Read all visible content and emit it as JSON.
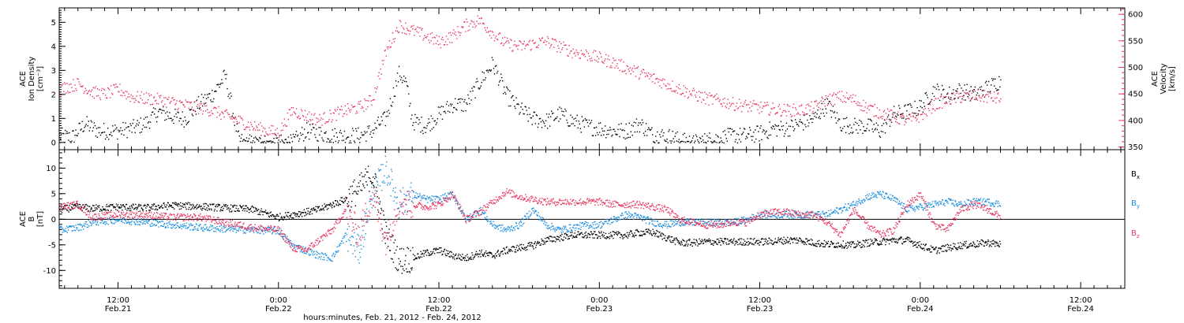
{
  "colors": {
    "black": "#000000",
    "pink": "#e8355f",
    "blue": "#1a8fe0"
  },
  "x_axis": {
    "title": "hours:minutes, Feb. 21, 2012 - Feb. 24, 2012",
    "ticks": [
      {
        "t": 12,
        "time": "12:00",
        "date": "Feb.21"
      },
      {
        "t": 24,
        "time": "0:00",
        "date": "Feb.22"
      },
      {
        "t": 36,
        "time": "12:00",
        "date": "Feb.22"
      },
      {
        "t": 48,
        "time": "0:00",
        "date": "Feb.23"
      },
      {
        "t": 60,
        "time": "12:00",
        "date": "Feb.23"
      },
      {
        "t": 72,
        "time": "0:00",
        "date": "Feb.24"
      },
      {
        "t": 84,
        "time": "12:00",
        "date": "Feb.24"
      }
    ]
  },
  "chart_data": [
    {
      "type": "scatter",
      "panel": "top",
      "xlabel": "hours:minutes, Feb. 21, 2012 - Feb. 24, 2012",
      "xlim_hours": [
        7.6,
        87.3
      ],
      "y_left": {
        "label": [
          "ACE",
          "Ion Density",
          "[cm⁻³]"
        ],
        "ylim": [
          -0.3,
          5.6
        ],
        "ticks": [
          0,
          1,
          2,
          3,
          4,
          5
        ]
      },
      "y_right": {
        "label": [
          "ACE",
          "Velocity",
          "[km/s]"
        ],
        "ylim": [
          345,
          612
        ],
        "ticks": [
          350,
          400,
          450,
          500,
          550,
          600
        ]
      },
      "series": [
        {
          "color": "#000000",
          "axis": "left",
          "x": [
            7.6,
            8.5,
            9.5,
            10.5,
            12,
            13,
            14,
            15,
            16,
            17,
            18,
            19,
            20,
            21,
            22,
            22.5,
            23,
            24,
            25,
            26,
            27,
            28,
            29,
            30,
            31,
            31.5,
            32,
            33,
            33.5,
            34,
            35,
            36,
            37,
            38,
            39,
            40,
            41,
            42,
            43,
            44,
            45,
            46,
            47,
            48,
            49,
            50,
            51,
            52,
            53,
            54,
            55,
            56,
            57,
            58,
            59,
            60,
            61,
            62,
            63,
            64,
            65,
            66,
            67,
            68,
            69,
            70,
            71,
            72,
            73,
            74,
            75,
            76,
            77,
            78
          ],
          "y": [
            0.3,
            0.2,
            0.8,
            0.5,
            0.5,
            0.6,
            0.8,
            1.3,
            1.1,
            1.0,
            1.6,
            2.0,
            2.8,
            0.1,
            0.0,
            0.0,
            0.0,
            0.0,
            0.0,
            0.5,
            0.4,
            0.3,
            0.3,
            0.3,
            0.5,
            0.8,
            1.0,
            2.9,
            2.5,
            0.9,
            0.7,
            1.2,
            1.6,
            1.6,
            2.5,
            3.3,
            2.0,
            1.4,
            1.0,
            0.9,
            1.2,
            0.9,
            0.7,
            0.6,
            0.5,
            0.5,
            0.8,
            0.3,
            0.3,
            0.1,
            0.0,
            0.1,
            0.2,
            0.3,
            0.3,
            0.4,
            0.6,
            0.6,
            0.8,
            1.0,
            1.6,
            0.8,
            0.7,
            0.7,
            0.5,
            1.2,
            1.3,
            1.5,
            2.2,
            2.0,
            2.2,
            2.0,
            2.3,
            2.6
          ]
        },
        {
          "color": "#e8355f",
          "axis": "right",
          "x": [
            7.6,
            9,
            10,
            11,
            12,
            13,
            15,
            17,
            19,
            20,
            21,
            22,
            23,
            24,
            25,
            26,
            27,
            28,
            29,
            30,
            31,
            32,
            33,
            34,
            35,
            36,
            37,
            38,
            39,
            40,
            41,
            42,
            43,
            44,
            45,
            46,
            47,
            48,
            49,
            50,
            51,
            52,
            53,
            54,
            55,
            56,
            57,
            58,
            59,
            60,
            61,
            62,
            63,
            64,
            65,
            66,
            67,
            68,
            69,
            70,
            71,
            72,
            73,
            74,
            75,
            76,
            77,
            78
          ],
          "y": [
            460,
            470,
            455,
            450,
            460,
            445,
            440,
            430,
            420,
            410,
            400,
            390,
            382,
            378,
            420,
            410,
            402,
            410,
            420,
            425,
            440,
            530,
            580,
            570,
            560,
            548,
            560,
            580,
            590,
            565,
            545,
            540,
            545,
            550,
            540,
            530,
            525,
            518,
            510,
            500,
            490,
            480,
            470,
            460,
            450,
            442,
            438,
            432,
            428,
            425,
            422,
            420,
            420,
            425,
            440,
            445,
            440,
            425,
            415,
            408,
            400,
            410,
            430,
            440,
            445,
            448,
            445,
            442
          ]
        }
      ]
    },
    {
      "type": "line",
      "panel": "bottom",
      "xlabel": "hours:minutes, Feb. 21, 2012 - Feb. 24, 2012",
      "xlim_hours": [
        7.6,
        87.3
      ],
      "y": {
        "label": [
          "ACE",
          "B",
          "[nT]"
        ],
        "ylim": [
          -13.5,
          13.6
        ],
        "ticks": [
          -10,
          -5,
          0,
          5,
          10
        ]
      },
      "series": [
        {
          "name": "Bx",
          "color": "#000000",
          "x": [
            7.6,
            9,
            10,
            12,
            14,
            16,
            18,
            20,
            22,
            24,
            25,
            26,
            27,
            28,
            29,
            30,
            31,
            32,
            33,
            34,
            35,
            36,
            37,
            38,
            39,
            40,
            41,
            42,
            43,
            44,
            45,
            46,
            47,
            48,
            49,
            50,
            51,
            52,
            53,
            54,
            55,
            56,
            57,
            58,
            59,
            60,
            61,
            62,
            63,
            64,
            65,
            66,
            67,
            68,
            69,
            70,
            71,
            72,
            73,
            74,
            75,
            76,
            77,
            78
          ],
          "y": [
            2.0,
            2.5,
            2.2,
            2.5,
            2.3,
            2.8,
            2.6,
            2.3,
            2.0,
            0.5,
            1.0,
            1.5,
            2.0,
            3.0,
            4.0,
            6.0,
            9.0,
            -3.0,
            -8.0,
            -7.5,
            -6.5,
            -6.0,
            -7.0,
            -7.5,
            -6.5,
            -7.0,
            -6.0,
            -5.5,
            -5.0,
            -4.0,
            -3.5,
            -3.0,
            -3.0,
            -3.0,
            -3.0,
            -3.0,
            -2.5,
            -2.5,
            -3.5,
            -4.5,
            -4.5,
            -4.3,
            -4.3,
            -4.3,
            -4.3,
            -4.3,
            -4.2,
            -4.0,
            -4.0,
            -4.5,
            -4.8,
            -4.8,
            -5.0,
            -4.5,
            -4.3,
            -4.0,
            -4.0,
            -5.0,
            -6.0,
            -5.5,
            -5.0,
            -4.8,
            -4.5,
            -4.8
          ]
        },
        {
          "name": "By",
          "color": "#1a8fe0",
          "x": [
            7.6,
            9,
            10,
            12,
            14,
            16,
            18,
            20,
            22,
            24,
            25,
            26,
            27,
            28,
            29,
            30,
            31,
            32,
            33,
            34,
            35,
            36,
            37,
            38,
            39,
            40,
            41,
            42,
            43,
            44,
            45,
            46,
            47,
            48,
            49,
            50,
            51,
            52,
            53,
            54,
            55,
            56,
            57,
            58,
            59,
            60,
            61,
            62,
            63,
            64,
            65,
            66,
            67,
            68,
            69,
            70,
            71,
            72,
            73,
            74,
            75,
            76,
            77,
            78
          ],
          "y": [
            -2.0,
            -1.5,
            -0.5,
            0.0,
            -0.5,
            -1.0,
            -1.5,
            -1.8,
            -2.0,
            -2.2,
            -5.0,
            -6.0,
            -7.0,
            -7.5,
            -3.0,
            -6.0,
            5.0,
            10.0,
            3.0,
            5.0,
            4.0,
            4.0,
            5.0,
            0.0,
            2.0,
            -1.0,
            -2.0,
            -1.0,
            2.0,
            -1.0,
            -2.0,
            -1.5,
            -1.0,
            -1.0,
            0.0,
            1.0,
            0.5,
            -0.5,
            -1.0,
            -0.5,
            -0.5,
            -0.5,
            -0.5,
            -0.5,
            0.0,
            1.0,
            1.0,
            1.0,
            1.0,
            1.0,
            1.0,
            2.0,
            3.0,
            4.5,
            5.0,
            4.0,
            2.0,
            2.5,
            3.0,
            3.5,
            3.0,
            3.5,
            3.5,
            3.0
          ]
        },
        {
          "name": "Bz",
          "color": "#e8355f",
          "x": [
            7.6,
            9,
            10,
            12,
            14,
            16,
            18,
            20,
            22,
            24,
            25,
            26,
            27,
            28,
            29,
            30,
            31,
            32,
            33,
            34,
            35,
            36,
            37,
            38,
            39,
            40,
            41,
            42,
            43,
            44,
            45,
            46,
            47,
            48,
            49,
            50,
            51,
            52,
            53,
            54,
            55,
            56,
            57,
            58,
            59,
            60,
            61,
            62,
            63,
            64,
            65,
            66,
            67,
            68,
            69,
            70,
            71,
            72,
            73,
            74,
            75,
            76,
            77,
            78
          ],
          "y": [
            2.5,
            3.0,
            0.5,
            1.0,
            1.0,
            0.5,
            0.5,
            -0.5,
            -1.5,
            -2.0,
            -5.5,
            -6.0,
            -4.0,
            -2.0,
            2.0,
            -3.0,
            5.0,
            -4.0,
            3.5,
            3.0,
            2.5,
            3.0,
            5.0,
            0.0,
            1.5,
            3.5,
            5.5,
            4.5,
            4.0,
            3.5,
            3.5,
            3.5,
            3.5,
            3.5,
            3.0,
            3.0,
            3.0,
            2.5,
            2.0,
            0.0,
            -0.5,
            -1.0,
            -1.0,
            -0.5,
            -0.5,
            1.0,
            1.5,
            1.5,
            1.0,
            1.0,
            -0.5,
            -3.0,
            2.0,
            -1.0,
            -3.0,
            -2.0,
            3.0,
            5.0,
            -1.0,
            -2.0,
            2.0,
            3.0,
            2.0,
            0.5
          ]
        }
      ]
    }
  ]
}
